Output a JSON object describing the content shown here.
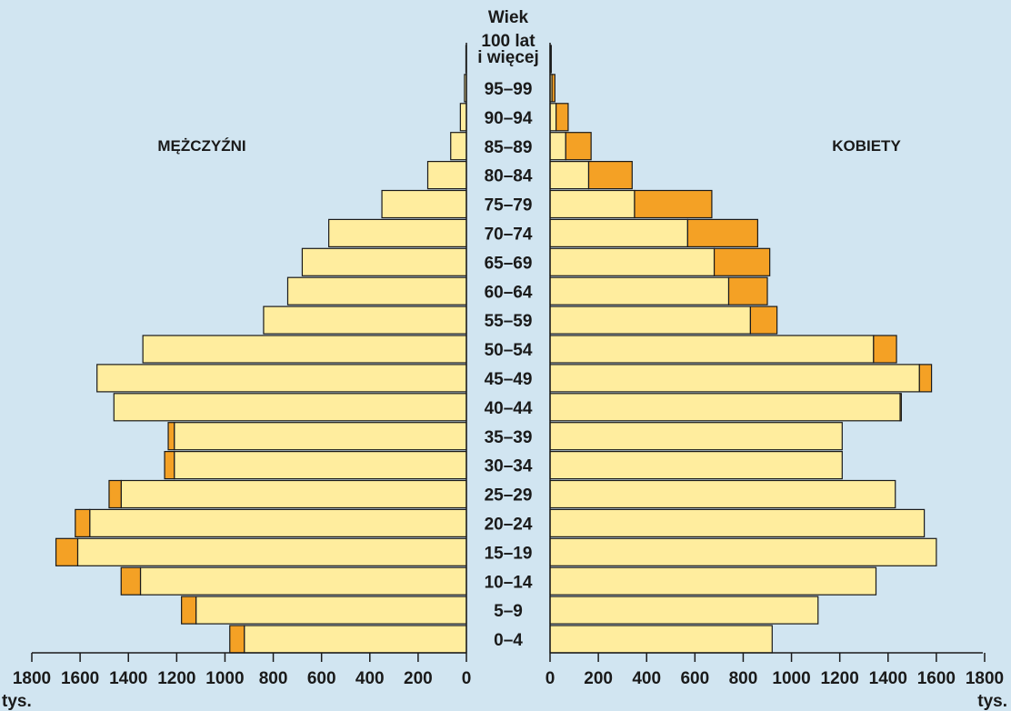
{
  "chart_data": {
    "type": "bar",
    "subtype": "population-pyramid",
    "age_axis_label": "Wiek",
    "age_groups": [
      "0–4",
      "5–9",
      "10–14",
      "15–19",
      "20–24",
      "25–29",
      "30–34",
      "35–39",
      "40–44",
      "45–49",
      "50–54",
      "55–59",
      "60–64",
      "65–69",
      "70–74",
      "75–79",
      "80–84",
      "85–89",
      "90–94",
      "95–99",
      "100 lat\ni więcej"
    ],
    "men_label": "MĘŻCZYŹNI",
    "women_label": "KOBIETY",
    "series": [
      {
        "name": "MĘŻCZYŹNI",
        "side": "left",
        "values": [
          920,
          1120,
          1350,
          1610,
          1560,
          1430,
          1210,
          1210,
          1460,
          1530,
          1340,
          840,
          740,
          680,
          570,
          350,
          160,
          65,
          25,
          8,
          2
        ],
        "surplus": [
          60,
          60,
          80,
          90,
          60,
          50,
          40,
          25,
          0,
          0,
          0,
          0,
          0,
          0,
          0,
          0,
          0,
          0,
          0,
          0,
          0
        ]
      },
      {
        "name": "KOBIETY",
        "side": "right",
        "values": [
          920,
          1110,
          1350,
          1600,
          1550,
          1430,
          1210,
          1210,
          1450,
          1530,
          1340,
          830,
          740,
          680,
          570,
          350,
          160,
          65,
          25,
          8,
          2
        ],
        "surplus": [
          0,
          0,
          0,
          0,
          0,
          0,
          0,
          0,
          5,
          50,
          95,
          110,
          160,
          230,
          290,
          320,
          180,
          105,
          50,
          12,
          3
        ]
      }
    ],
    "x_ticks": [
      "0",
      "200",
      "400",
      "600",
      "800",
      "1000",
      "1200",
      "1400",
      "1600",
      "1800"
    ],
    "x_unit": "tys.",
    "xlim": [
      0,
      1800
    ],
    "colors": {
      "base": "#ffed9e",
      "surplus": "#f4a125",
      "outline": "#1a1a1a",
      "background": "#d1e5f1"
    }
  }
}
